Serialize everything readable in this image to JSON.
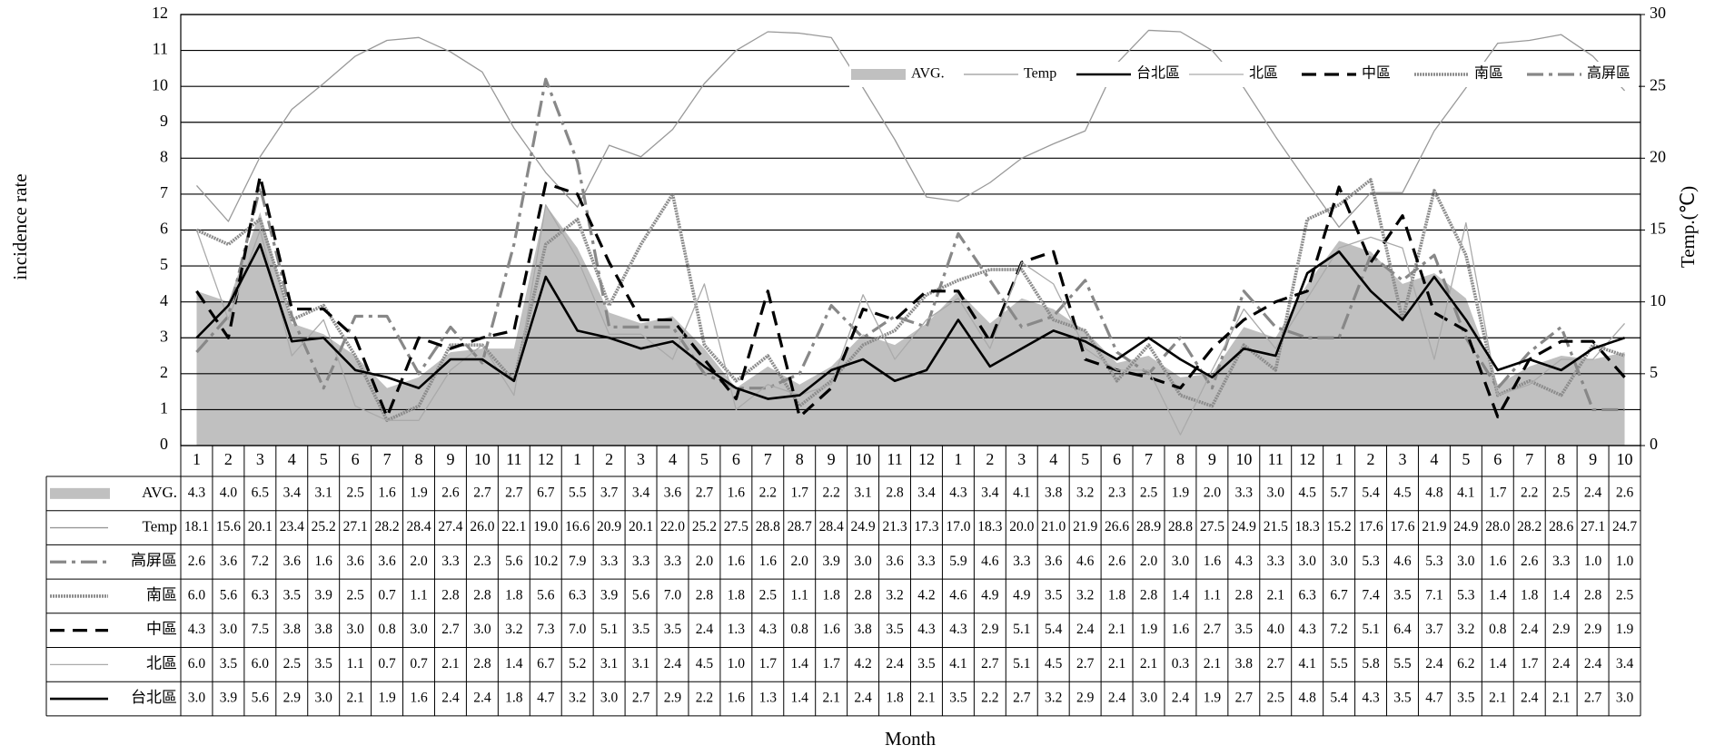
{
  "chart_data": {
    "type": "line",
    "y_label": "incidence rate",
    "y2_label": "Temp.(℃)",
    "x_label": "Month",
    "categories": [
      "1",
      "2",
      "3",
      "4",
      "5",
      "6",
      "7",
      "8",
      "9",
      "10",
      "11",
      "12",
      "1",
      "2",
      "3",
      "4",
      "5",
      "6",
      "7",
      "8",
      "9",
      "10",
      "11",
      "12",
      "1",
      "2",
      "3",
      "4",
      "5",
      "6",
      "7",
      "8",
      "9",
      "10",
      "11",
      "12",
      "1",
      "2",
      "3",
      "4",
      "5",
      "6",
      "7",
      "8",
      "9",
      "10"
    ],
    "ylim": [
      0,
      12
    ],
    "yticks": [
      0,
      1,
      2,
      3,
      4,
      5,
      6,
      7,
      8,
      9,
      10,
      11,
      12
    ],
    "y2lim": [
      0,
      30
    ],
    "y2ticks": [
      0,
      5,
      10,
      15,
      20,
      25,
      30
    ],
    "grid": true,
    "legend": "top-right",
    "series": [
      {
        "name": "AVG.",
        "color": "#c0c0c0",
        "style": "area",
        "values": [
          4.3,
          4.0,
          6.5,
          3.4,
          3.1,
          2.5,
          1.6,
          1.9,
          2.6,
          2.7,
          2.7,
          6.7,
          5.5,
          3.7,
          3.4,
          3.6,
          2.7,
          1.6,
          2.2,
          1.7,
          2.2,
          3.1,
          2.8,
          3.4,
          4.3,
          3.4,
          4.1,
          3.8,
          3.2,
          2.3,
          2.5,
          1.9,
          2.0,
          3.3,
          3.0,
          4.5,
          5.7,
          5.4,
          4.5,
          4.8,
          4.1,
          1.7,
          2.2,
          2.5,
          2.4,
          2.6
        ],
        "value_labels": [
          "4.3",
          "4.0",
          "6.5",
          "3.4",
          "3.1",
          "2.5",
          "1.6",
          "1.9",
          "2.6",
          "2.7",
          "2.7",
          "6.7",
          "5.5",
          "3.7",
          "3.4",
          "3.6",
          "2.7",
          "1.6",
          "2.2",
          "1.7",
          "2.2",
          "3.1",
          "2.8",
          "3.4",
          "4.3",
          "3.4",
          "4.1",
          "3.8",
          "3.2",
          "2.3",
          "2.5",
          "1.9",
          "2.0",
          "3.3",
          "3.0",
          "4.5",
          "5.7",
          "5.4",
          "4.5",
          "4.8",
          "4.1",
          "1.7",
          "2.2",
          "2.5",
          "2.4",
          "2.6"
        ]
      },
      {
        "name": "Temp",
        "color": "#999999",
        "style": "thin",
        "axis": "y2",
        "values": [
          18.1,
          15.6,
          20.1,
          23.4,
          25.2,
          27.1,
          28.2,
          28.4,
          27.4,
          26.0,
          22.1,
          19.0,
          16.6,
          20.9,
          20.1,
          22.0,
          25.2,
          27.5,
          28.8,
          28.7,
          28.4,
          24.9,
          21.3,
          17.3,
          17.0,
          18.3,
          20.0,
          21.0,
          21.9,
          26.6,
          28.9,
          28.8,
          27.5,
          24.9,
          21.5,
          18.3,
          15.2,
          17.6,
          17.6,
          21.9,
          24.9,
          28.0,
          28.2,
          28.6,
          27.1,
          24.7
        ],
        "value_labels": [
          "18.1",
          "15.6",
          "20.1",
          "23.4",
          "25.2",
          "27.1",
          "28.2",
          "28.4",
          "27.4",
          "26.0",
          "22.1",
          "19.0",
          "16.6",
          "20.9",
          "20.1",
          "22.0",
          "25.2",
          "27.5",
          "28.8",
          "28.7",
          "28.4",
          "24.9",
          "21.3",
          "17.3",
          "17.0",
          "18.3",
          "20.0",
          "21.0",
          "21.9",
          "26.6",
          "28.9",
          "28.8",
          "27.5",
          "24.9",
          "21.5",
          "18.3",
          "15.2",
          "17.6",
          "17.6",
          "21.9",
          "24.9",
          "28.0",
          "28.2",
          "28.6",
          "27.1",
          "24.7"
        ]
      },
      {
        "name": "高屏區",
        "color": "#888888",
        "style": "dashdot",
        "values": [
          2.6,
          3.6,
          7.2,
          3.6,
          1.6,
          3.6,
          3.6,
          2.0,
          3.3,
          2.3,
          5.6,
          10.2,
          7.9,
          3.3,
          3.3,
          3.3,
          2.0,
          1.6,
          1.6,
          2.0,
          3.9,
          3.0,
          3.6,
          3.3,
          5.9,
          4.6,
          3.3,
          3.6,
          4.6,
          2.6,
          2.0,
          3.0,
          1.6,
          4.3,
          3.3,
          3.0,
          3.0,
          5.3,
          4.6,
          5.3,
          3.0,
          1.6,
          2.6,
          3.3,
          1.0,
          1.0
        ],
        "value_labels": [
          "2.6",
          "3.6",
          "7.2",
          "3.6",
          "1.6",
          "3.6",
          "3.6",
          "2.0",
          "3.3",
          "2.3",
          "5.6",
          "10.2",
          "7.9",
          "3.3",
          "3.3",
          "3.3",
          "2.0",
          "1.6",
          "1.6",
          "2.0",
          "3.9",
          "3.0",
          "3.6",
          "3.3",
          "5.9",
          "4.6",
          "3.3",
          "3.6",
          "4.6",
          "2.6",
          "2.0",
          "3.0",
          "1.6",
          "4.3",
          "3.3",
          "3.0",
          "3.0",
          "5.3",
          "4.6",
          "5.3",
          "3.0",
          "1.6",
          "2.6",
          "3.3",
          "1.0",
          "1.0"
        ]
      },
      {
        "name": "南區",
        "color": "#8c8c8c",
        "style": "textured",
        "values": [
          6.0,
          5.6,
          6.3,
          3.5,
          3.9,
          2.5,
          0.7,
          1.1,
          2.8,
          2.8,
          1.8,
          5.6,
          6.3,
          3.9,
          5.6,
          7.0,
          2.8,
          1.8,
          2.5,
          1.1,
          1.8,
          2.8,
          3.2,
          4.2,
          4.6,
          4.9,
          4.9,
          3.5,
          3.2,
          1.8,
          2.8,
          1.4,
          1.1,
          2.8,
          2.1,
          6.3,
          6.7,
          7.4,
          3.5,
          7.1,
          5.3,
          1.4,
          1.8,
          1.4,
          2.8,
          2.5
        ],
        "value_labels": [
          "6.0",
          "5.6",
          "6.3",
          "3.5",
          "3.9",
          "2.5",
          "0.7",
          "1.1",
          "2.8",
          "2.8",
          "1.8",
          "5.6",
          "6.3",
          "3.9",
          "5.6",
          "7.0",
          "2.8",
          "1.8",
          "2.5",
          "1.1",
          "1.8",
          "2.8",
          "3.2",
          "4.2",
          "4.6",
          "4.9",
          "4.9",
          "3.5",
          "3.2",
          "1.8",
          "2.8",
          "1.4",
          "1.1",
          "2.8",
          "2.1",
          "6.3",
          "6.7",
          "7.4",
          "3.5",
          "7.1",
          "5.3",
          "1.4",
          "1.8",
          "1.4",
          "2.8",
          "2.5"
        ]
      },
      {
        "name": "中區",
        "color": "#000000",
        "style": "dashed",
        "values": [
          4.3,
          3.0,
          7.5,
          3.8,
          3.8,
          3.0,
          0.8,
          3.0,
          2.7,
          3.0,
          3.2,
          7.3,
          7.0,
          5.1,
          3.5,
          3.5,
          2.4,
          1.3,
          4.3,
          0.8,
          1.6,
          3.8,
          3.5,
          4.3,
          4.3,
          2.9,
          5.1,
          5.4,
          2.4,
          2.1,
          1.9,
          1.6,
          2.7,
          3.5,
          4.0,
          4.3,
          7.2,
          5.1,
          6.4,
          3.7,
          3.2,
          0.8,
          2.4,
          2.9,
          2.9,
          1.9
        ],
        "value_labels": [
          "4.3",
          "3.0",
          "7.5",
          "3.8",
          "3.8",
          "3.0",
          "0.8",
          "3.0",
          "2.7",
          "3.0",
          "3.2",
          "7.3",
          "7.0",
          "5.1",
          "3.5",
          "3.5",
          "2.4",
          "1.3",
          "4.3",
          "0.8",
          "1.6",
          "3.8",
          "3.5",
          "4.3",
          "4.3",
          "2.9",
          "5.1",
          "5.4",
          "2.4",
          "2.1",
          "1.9",
          "1.6",
          "2.7",
          "3.5",
          "4.0",
          "4.3",
          "7.2",
          "5.1",
          "6.4",
          "3.7",
          "3.2",
          "0.8",
          "2.4",
          "2.9",
          "2.9",
          "1.9"
        ]
      },
      {
        "name": "北區",
        "color": "#aaaaaa",
        "style": "thin",
        "values": [
          6.0,
          3.5,
          6.0,
          2.5,
          3.5,
          1.1,
          0.7,
          0.7,
          2.1,
          2.8,
          1.4,
          6.7,
          5.2,
          3.1,
          3.1,
          2.4,
          4.5,
          1.0,
          1.7,
          1.4,
          1.7,
          4.2,
          2.4,
          3.5,
          4.1,
          2.7,
          5.1,
          4.5,
          2.7,
          2.1,
          2.1,
          0.3,
          2.1,
          3.8,
          2.7,
          4.1,
          5.5,
          5.8,
          5.5,
          2.4,
          6.2,
          1.4,
          1.7,
          2.4,
          2.4,
          3.4
        ],
        "value_labels": [
          "6.0",
          "3.5",
          "6.0",
          "2.5",
          "3.5",
          "1.1",
          "0.7",
          "0.7",
          "2.1",
          "2.8",
          "1.4",
          "6.7",
          "5.2",
          "3.1",
          "3.1",
          "2.4",
          "4.5",
          "1.0",
          "1.7",
          "1.4",
          "1.7",
          "4.2",
          "2.4",
          "3.5",
          "4.1",
          "2.7",
          "5.1",
          "4.5",
          "2.7",
          "2.1",
          "2.1",
          "0.3",
          "2.1",
          "3.8",
          "2.7",
          "4.1",
          "5.5",
          "5.8",
          "5.5",
          "2.4",
          "6.2",
          "1.4",
          "1.7",
          "2.4",
          "2.4",
          "3.4"
        ]
      },
      {
        "name": "台北區",
        "color": "#000000",
        "style": "solid",
        "values": [
          3.0,
          3.9,
          5.6,
          2.9,
          3.0,
          2.1,
          1.9,
          1.6,
          2.4,
          2.4,
          1.8,
          4.7,
          3.2,
          3.0,
          2.7,
          2.9,
          2.2,
          1.6,
          1.3,
          1.4,
          2.1,
          2.4,
          1.8,
          2.1,
          3.5,
          2.2,
          2.7,
          3.2,
          2.9,
          2.4,
          3.0,
          2.4,
          1.9,
          2.7,
          2.5,
          4.8,
          5.4,
          4.3,
          3.5,
          4.7,
          3.5,
          2.1,
          2.4,
          2.1,
          2.7,
          3.0
        ],
        "value_labels": [
          "3.0",
          "3.9",
          "5.6",
          "2.9",
          "3.0",
          "2.1",
          "1.9",
          "1.6",
          "2.4",
          "2.4",
          "1.8",
          "4.7",
          "3.2",
          "3.0",
          "2.7",
          "2.9",
          "2.2",
          "1.6",
          "1.3",
          "1.4",
          "2.1",
          "2.4",
          "1.8",
          "2.1",
          "3.5",
          "2.2",
          "2.7",
          "3.2",
          "2.9",
          "2.4",
          "3.0",
          "2.4",
          "1.9",
          "2.7",
          "2.5",
          "4.8",
          "5.4",
          "4.3",
          "3.5",
          "4.7",
          "3.5",
          "2.1",
          "2.4",
          "2.1",
          "2.7",
          "3.0"
        ]
      }
    ]
  }
}
